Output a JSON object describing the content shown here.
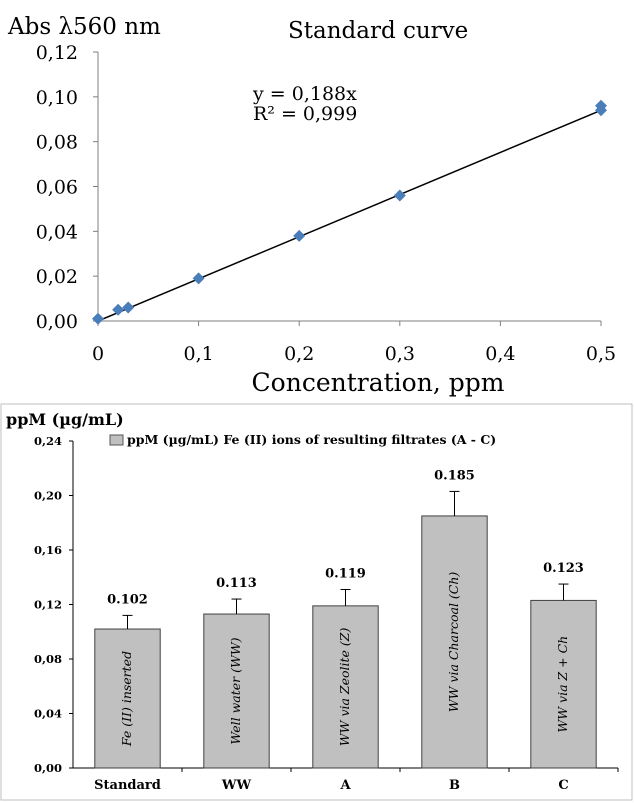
{
  "chart_data": [
    {
      "type": "scatter",
      "title": "Standard curve",
      "ylabel": "Abs λ560 nm",
      "xlabel": "Concentration, ppm",
      "xlim": [
        0,
        0.5
      ],
      "ylim": [
        0,
        0.12
      ],
      "x_ticks": [
        "0",
        "0,1",
        "0,2",
        "0,3",
        "0,4",
        "0,5"
      ],
      "y_ticks": [
        "0,00",
        "0,02",
        "0,04",
        "0,06",
        "0,08",
        "0,10",
        "0,12"
      ],
      "grid": false,
      "marker_color": "#4a7ebb",
      "line_color": "#000000",
      "points": [
        {
          "x": 0,
          "y": 0.001
        },
        {
          "x": 0.02,
          "y": 0.005
        },
        {
          "x": 0.03,
          "y": 0.006
        },
        {
          "x": 0.1,
          "y": 0.019
        },
        {
          "x": 0.2,
          "y": 0.038
        },
        {
          "x": 0.3,
          "y": 0.056
        },
        {
          "x": 0.5,
          "y": 0.094
        },
        {
          "x": 0.5,
          "y": 0.096
        }
      ],
      "trendline": {
        "slope": 0.188,
        "equation": "y = 0,188x",
        "r2_label": "R² = 0,999"
      }
    },
    {
      "type": "bar",
      "ylabel": "ppM (µg/mL)",
      "legend": "ppM (µg/mL) Fe (II) ions  of resulting filtrates (A - C)",
      "legend_position": "top",
      "categories": [
        "Standard",
        "WW",
        "A",
        "B",
        "C"
      ],
      "values": [
        0.102,
        0.113,
        0.119,
        0.185,
        0.123
      ],
      "value_labels": [
        "0.102",
        "0.113",
        "0.119",
        "0.185",
        "0.123"
      ],
      "errors": [
        0.01,
        0.011,
        0.012,
        0.018,
        0.012
      ],
      "bar_labels": [
        "Fe (II) inserted",
        "Well water (WW)",
        "WW  via Zeolite (Z)",
        "WW  via Charcoal (Ch)",
        "WW  via Z + Ch"
      ],
      "ylim": [
        0,
        0.24
      ],
      "y_ticks": [
        "0,00",
        "0,04",
        "0,08",
        "0,12",
        "0,16",
        "0,20",
        "0,24"
      ],
      "bar_color": "#c0c0c0",
      "grid": false
    }
  ]
}
